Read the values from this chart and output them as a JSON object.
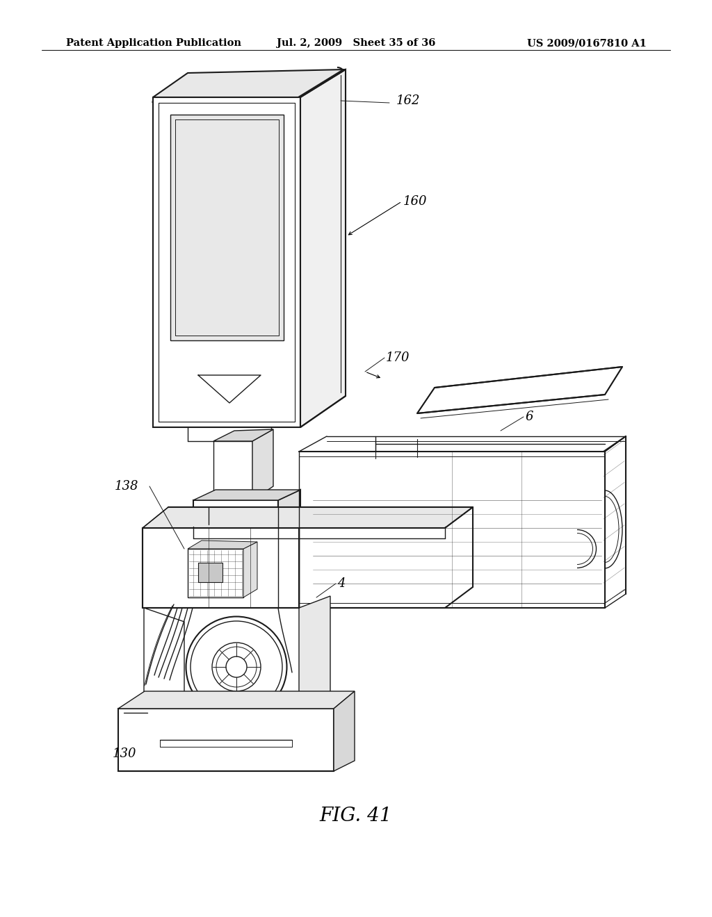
{
  "bg_color": "#ffffff",
  "header_left": "Patent Application Publication",
  "header_mid": "Jul. 2, 2009   Sheet 35 of 36",
  "header_right": "US 2009/0167810 A1",
  "fig_label": "FIG. 41",
  "label_fontsize": 13,
  "header_fontsize": 10.5,
  "fig_label_fontsize": 20,
  "line_color": "#1a1a1a"
}
